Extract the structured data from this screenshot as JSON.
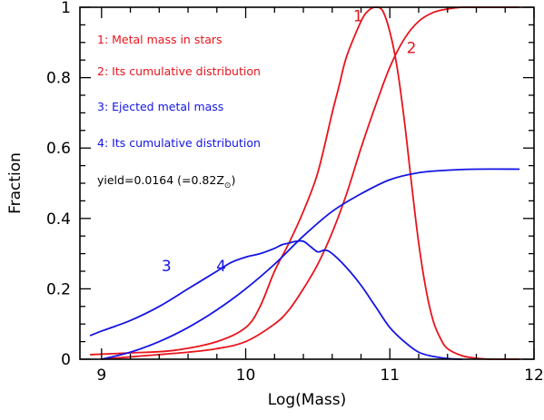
{
  "chart_data": {
    "type": "line",
    "xlabel": "Log(Mass)",
    "ylabel": "Fraction",
    "xlim": [
      8.85,
      12
    ],
    "ylim": [
      0,
      1
    ],
    "x_ticks": [
      "9",
      "10",
      "11",
      "12"
    ],
    "y_ticks": [
      "0",
      "0.2",
      "0.4",
      "0.6",
      "0.8",
      "1"
    ],
    "colors": {
      "red": "#e8141c",
      "blue": "#1414e6"
    },
    "legend": [
      {
        "text": "1: Metal mass in stars",
        "color": "#e8141c"
      },
      {
        "text": "2: Its cumulative distribution",
        "color": "#e8141c"
      },
      {
        "text": "3: Ejected  metal mass",
        "color": "#1414e6"
      },
      {
        "text": "4: Its cumulative distribution",
        "color": "#1414e6"
      }
    ],
    "yield_note": {
      "main": "yield=0.0164  (=0.82Z",
      "sub": "⊙",
      "close": ")"
    },
    "series": [
      {
        "label": "1",
        "color": "#e8141c",
        "x": [
          8.92,
          9.2,
          9.5,
          9.8,
          10.0,
          10.1,
          10.2,
          10.3,
          10.4,
          10.5,
          10.6,
          10.65,
          10.7,
          10.8,
          10.85,
          10.9,
          10.95,
          11.0,
          11.05,
          11.1,
          11.15,
          11.2,
          11.25,
          11.3,
          11.35,
          11.4,
          11.5,
          11.6,
          11.7,
          11.9
        ],
        "y": [
          0.013,
          0.018,
          0.025,
          0.05,
          0.09,
          0.15,
          0.25,
          0.33,
          0.42,
          0.53,
          0.7,
          0.78,
          0.86,
          0.96,
          0.99,
          1.0,
          0.99,
          0.93,
          0.83,
          0.68,
          0.5,
          0.33,
          0.2,
          0.11,
          0.06,
          0.03,
          0.01,
          0.003,
          0.0,
          0.0
        ]
      },
      {
        "label": "2",
        "color": "#e8141c",
        "x": [
          9.0,
          9.3,
          9.6,
          9.8,
          10.0,
          10.2,
          10.3,
          10.4,
          10.5,
          10.6,
          10.7,
          10.8,
          10.9,
          11.0,
          11.1,
          11.2,
          11.3,
          11.4,
          11.5,
          11.6,
          11.7,
          11.9
        ],
        "y": [
          0.0,
          0.01,
          0.02,
          0.03,
          0.05,
          0.1,
          0.14,
          0.2,
          0.27,
          0.36,
          0.47,
          0.6,
          0.72,
          0.83,
          0.91,
          0.96,
          0.985,
          0.995,
          1.0,
          1.0,
          1.0,
          1.0
        ]
      },
      {
        "label": "3",
        "color": "#1414e6",
        "x": [
          8.92,
          9.0,
          9.2,
          9.4,
          9.6,
          9.8,
          9.9,
          10.0,
          10.1,
          10.2,
          10.25,
          10.3,
          10.35,
          10.4,
          10.45,
          10.5,
          10.55,
          10.6,
          10.7,
          10.8,
          10.9,
          11.0,
          11.1,
          11.2,
          11.3,
          11.4,
          11.5
        ],
        "y": [
          0.067,
          0.08,
          0.11,
          0.15,
          0.2,
          0.25,
          0.275,
          0.29,
          0.3,
          0.315,
          0.325,
          0.33,
          0.335,
          0.335,
          0.32,
          0.305,
          0.31,
          0.3,
          0.26,
          0.21,
          0.15,
          0.09,
          0.05,
          0.02,
          0.008,
          0.002,
          0.0
        ]
      },
      {
        "label": "4",
        "color": "#1414e6",
        "x": [
          9.0,
          9.2,
          9.4,
          9.6,
          9.8,
          10.0,
          10.2,
          10.4,
          10.6,
          10.8,
          11.0,
          11.2,
          11.4,
          11.6,
          11.9
        ],
        "y": [
          0.0,
          0.02,
          0.05,
          0.09,
          0.14,
          0.2,
          0.27,
          0.35,
          0.42,
          0.47,
          0.51,
          0.53,
          0.537,
          0.54,
          0.54
        ]
      }
    ]
  }
}
